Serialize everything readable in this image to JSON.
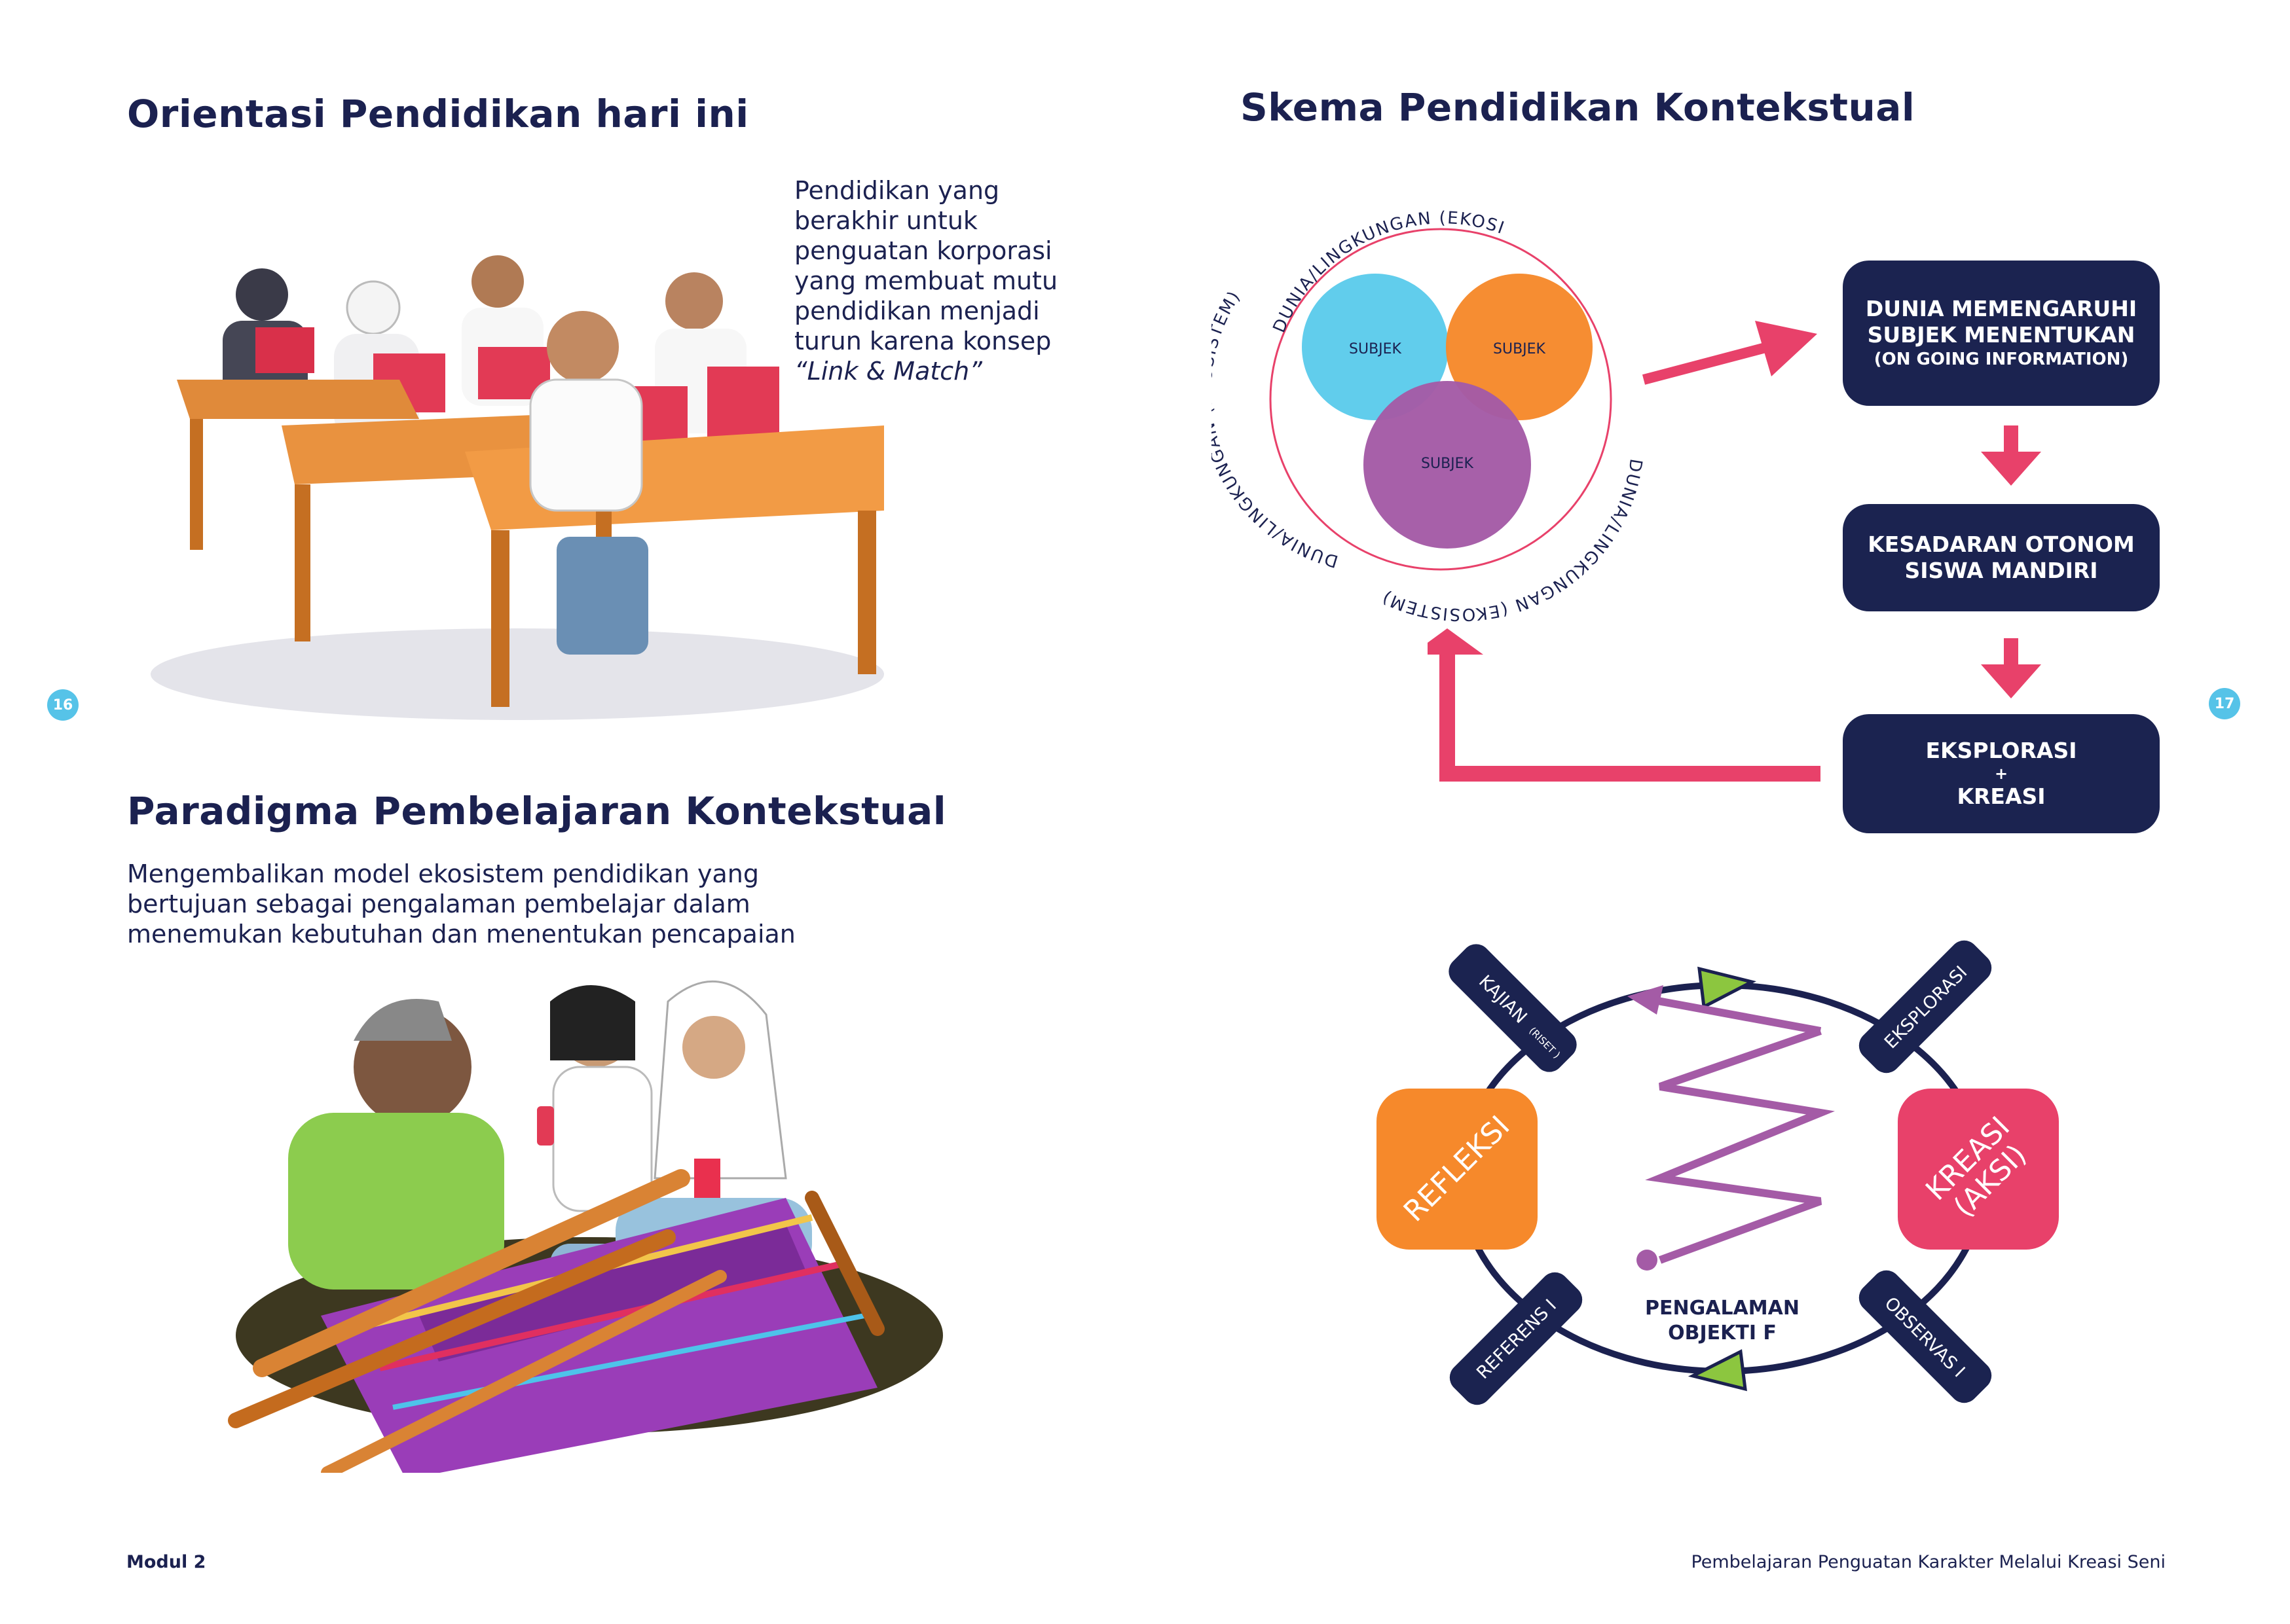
{
  "left": {
    "title1": "Orientasi Pendidikan hari ini",
    "para1": [
      "Pendidikan yang",
      "berakhir untuk",
      "penguatan korporasi",
      "yang membuat mutu",
      "pendidikan menjadi",
      "turun karena konsep"
    ],
    "para1_italic": "“Link & Match”",
    "title2": "Paradigma Pembelajaran Kontekstual",
    "para2": [
      "Mengembalikan model ekosistem pendidikan yang",
      "bertujuan sebagai pengalaman pembelajar dalam",
      "menemukan kebutuhan dan menentukan pencapaian"
    ],
    "page_number": "16"
  },
  "right": {
    "title": "Skema Pendidikan Kontekstual",
    "ring_label": "DUNIA/LINGKUNGAN (EKOSISTEM)",
    "subjek": "SUBJEK",
    "flow": {
      "box1_line1": "DUNIA MEMENGARUHI",
      "box1_line2": "SUBJEK MENENTUKAN",
      "box1_line3": "(ON GOING INFORMATION)",
      "box2_line1": "KESADARAN OTONOM",
      "box2_line2": "SISWA MANDIRI",
      "box3_line1": "EKSPLORASI",
      "box3_line2": "+",
      "box3_line3": "KREASI"
    },
    "cycle": {
      "kajian": "KAJIAN",
      "riset": "(RISET )",
      "eksplorasi": "EKSPLORASI",
      "referensi": "REFERENS I",
      "observasi": "OBSERVAS I",
      "refleksi": "REFLEKSI",
      "kreasi_line1": "KREASI",
      "kreasi_line2": "(AKSI)",
      "center_line1": "PENGALAMAN",
      "center_line2": "OBJEKTI F"
    },
    "page_number": "17"
  },
  "footer": {
    "left": "Modul 2",
    "right": "Pembelajaran Penguatan Karakter Melalui Kreasi Seni"
  },
  "colors": {
    "navy": "#1b2350",
    "pink": "#e8416a",
    "cyan": "#5ccbeb",
    "orange": "#f6892b",
    "purple": "#a45ba6",
    "green": "#8cc63f",
    "page_badge": "#56c3e8"
  }
}
